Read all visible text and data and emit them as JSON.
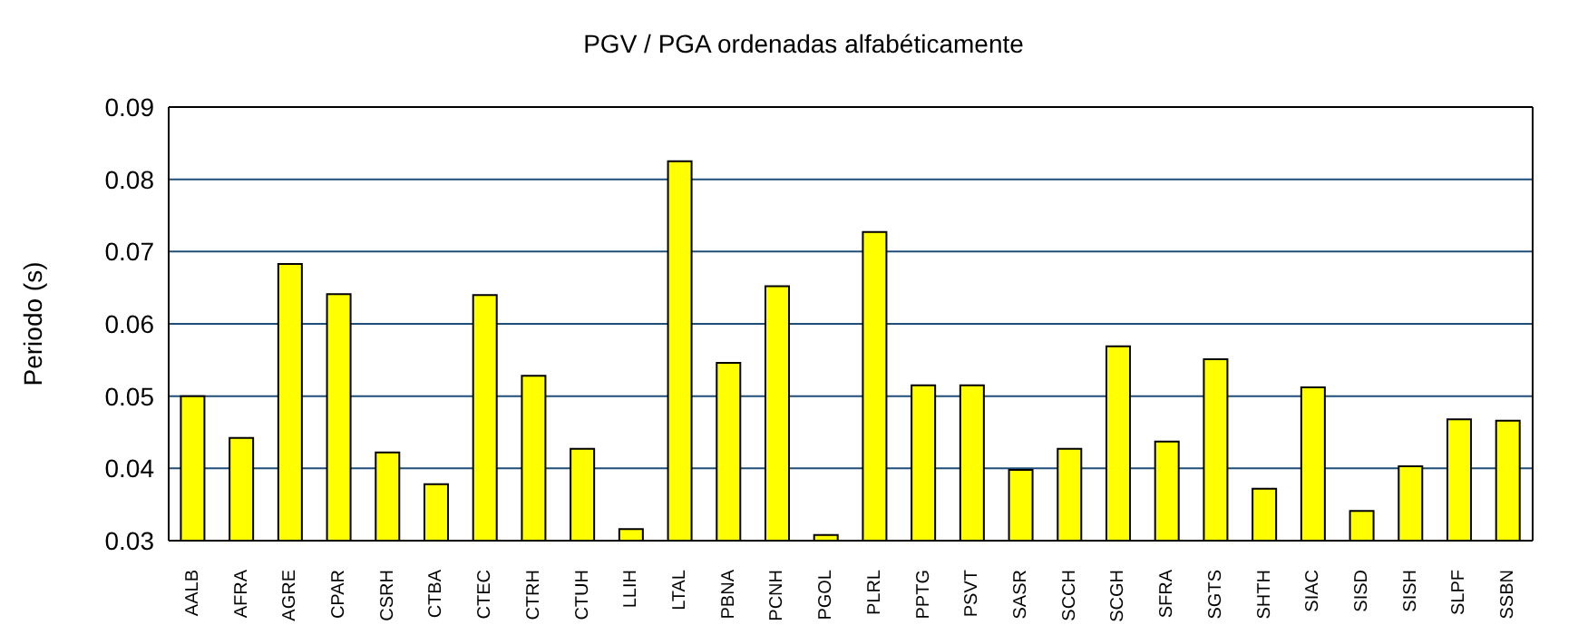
{
  "chart_data": {
    "type": "bar",
    "title": "PGV / PGA ordenadas alfabéticamente",
    "ylabel": "Periodo (s)",
    "categories": [
      "AALB",
      "AFRA",
      "AGRE",
      "CPAR",
      "CSRH",
      "CTBA",
      "CTEC",
      "CTRH",
      "CTUH",
      "LLIH",
      "LTAL",
      "PBNA",
      "PCNH",
      "PGOL",
      "PLRL",
      "PPTG",
      "PSVT",
      "SASR",
      "SCCH",
      "SCGH",
      "SFRA",
      "SGTS",
      "SHTH",
      "SIAC",
      "SISD",
      "SISH",
      "SLPF",
      "SSBN"
    ],
    "values": [
      0.05,
      0.0442,
      0.0683,
      0.0641,
      0.0422,
      0.0378,
      0.064,
      0.0528,
      0.0427,
      0.0316,
      0.0825,
      0.0546,
      0.0652,
      0.0308,
      0.0727,
      0.0515,
      0.0515,
      0.0398,
      0.0427,
      0.0569,
      0.0437,
      0.0551,
      0.0372,
      0.0512,
      0.0341,
      0.0403,
      0.0468,
      0.0466
    ],
    "color": "#ffff00",
    "ylim": [
      0.03,
      0.09
    ],
    "yticks": [
      0.03,
      0.04,
      0.05,
      0.06,
      0.07,
      0.08,
      0.09
    ],
    "grid": "y"
  }
}
